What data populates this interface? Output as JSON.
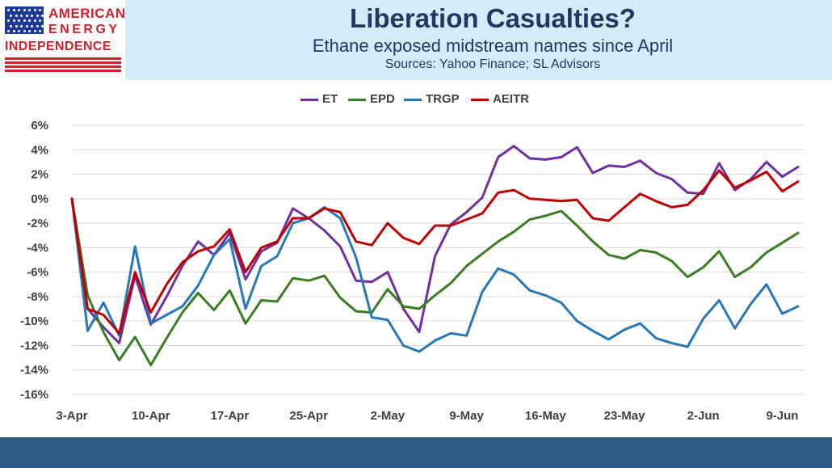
{
  "header": {
    "title": "Liberation Casualties?",
    "subtitle": "Ethane exposed midstream names since April",
    "sources": "Sources: Yahoo Finance; SL Advisors",
    "logo": {
      "line1": "AMERICAN",
      "line2": "ENERGY",
      "line3": "INDEPENDENCE",
      "icon": "us-flag-icon",
      "brand_color": "#d0202c",
      "flag_color": "#1f3a93"
    }
  },
  "colors": {
    "header_bg": "#d6ebf8",
    "title": "#1f3864",
    "footer": "#2e5a87"
  },
  "chart_data": {
    "type": "line",
    "title": "",
    "xlabel": "",
    "ylabel": "",
    "ylim": [
      -16,
      6
    ],
    "y_ticks": [
      6,
      4,
      2,
      0,
      -2,
      -4,
      -6,
      -8,
      -10,
      -12,
      -14,
      -16
    ],
    "y_tick_labels": [
      "6%",
      "4%",
      "2%",
      "0%",
      "-2%",
      "-4%",
      "-6%",
      "-8%",
      "-10%",
      "-12%",
      "-14%",
      "-16%"
    ],
    "x_tick_labels": [
      "3-Apr",
      "10-Apr",
      "17-Apr",
      "25-Apr",
      "2-May",
      "9-May",
      "16-May",
      "23-May",
      "2-Jun",
      "9-Jun"
    ],
    "x_tick_positions": [
      0,
      5,
      10,
      15,
      20,
      25,
      30,
      35,
      40,
      45
    ],
    "grid": true,
    "legend_position": "top",
    "series": [
      {
        "name": "ET",
        "color": "#7030a0",
        "values": [
          0,
          -9,
          -10.5,
          -11.8,
          -6.3,
          -10.3,
          -8.0,
          -5.5,
          -3.5,
          -4.6,
          -2.8,
          -6.6,
          -4.3,
          -3.6,
          -0.8,
          -1.6,
          -2.6,
          -3.9,
          -6.7,
          -6.8,
          -6.0,
          -9.0,
          -10.9,
          -4.7,
          -2.1,
          -1.1,
          0.1,
          3.4,
          4.3,
          3.3,
          3.2,
          3.4,
          4.2,
          2.1,
          2.7,
          2.6,
          3.1,
          2.1,
          1.6,
          0.5,
          0.4,
          2.9,
          0.7,
          1.6,
          3.0,
          1.8,
          2.6
        ]
      },
      {
        "name": "EPD",
        "color": "#3a7d22",
        "values": [
          0,
          -7.9,
          -10.9,
          -13.2,
          -11.3,
          -13.6,
          -11.4,
          -9.3,
          -7.7,
          -9.1,
          -7.5,
          -10.2,
          -8.3,
          -8.4,
          -6.5,
          -6.7,
          -6.3,
          -8.1,
          -9.2,
          -9.3,
          -7.4,
          -8.8,
          -9.0,
          -7.9,
          -6.9,
          -5.5,
          -4.5,
          -3.5,
          -2.7,
          -1.7,
          -1.4,
          -1.0,
          -2.2,
          -3.5,
          -4.6,
          -4.9,
          -4.2,
          -4.4,
          -5.1,
          -6.4,
          -5.6,
          -4.3,
          -6.4,
          -5.6,
          -4.4,
          -3.6,
          -2.8
        ]
      },
      {
        "name": "TRGP",
        "color": "#2678b8",
        "values": [
          0,
          -10.8,
          -8.5,
          -11.2,
          -3.9,
          -10.2,
          -9.5,
          -8.8,
          -7.1,
          -4.6,
          -3.3,
          -9.0,
          -5.5,
          -4.7,
          -2.0,
          -1.6,
          -0.7,
          -1.6,
          -4.8,
          -9.7,
          -9.9,
          -12.0,
          -12.5,
          -11.6,
          -11.0,
          -11.2,
          -7.6,
          -5.7,
          -6.2,
          -7.5,
          -7.9,
          -8.5,
          -10.0,
          -10.8,
          -11.5,
          -10.7,
          -10.2,
          -11.4,
          -11.8,
          -12.1,
          -9.8,
          -8.3,
          -10.6,
          -8.6,
          -7.0,
          -9.4,
          -8.8
        ]
      },
      {
        "name": "AEITR",
        "color": "#c00000",
        "values": [
          0,
          -9.0,
          -9.5,
          -11.0,
          -6.0,
          -9.3,
          -7.0,
          -5.2,
          -4.3,
          -3.9,
          -2.5,
          -6.0,
          -4.0,
          -3.5,
          -1.6,
          -1.6,
          -0.8,
          -1.1,
          -3.5,
          -3.8,
          -2.0,
          -3.2,
          -3.7,
          -2.2,
          -2.2,
          -1.7,
          -1.2,
          0.5,
          0.7,
          0.0,
          -0.1,
          -0.2,
          -0.1,
          -1.6,
          -1.8,
          -0.7,
          0.4,
          -0.2,
          -0.7,
          -0.5,
          0.7,
          2.3,
          0.9,
          1.5,
          2.2,
          0.6,
          1.4
        ]
      }
    ]
  }
}
